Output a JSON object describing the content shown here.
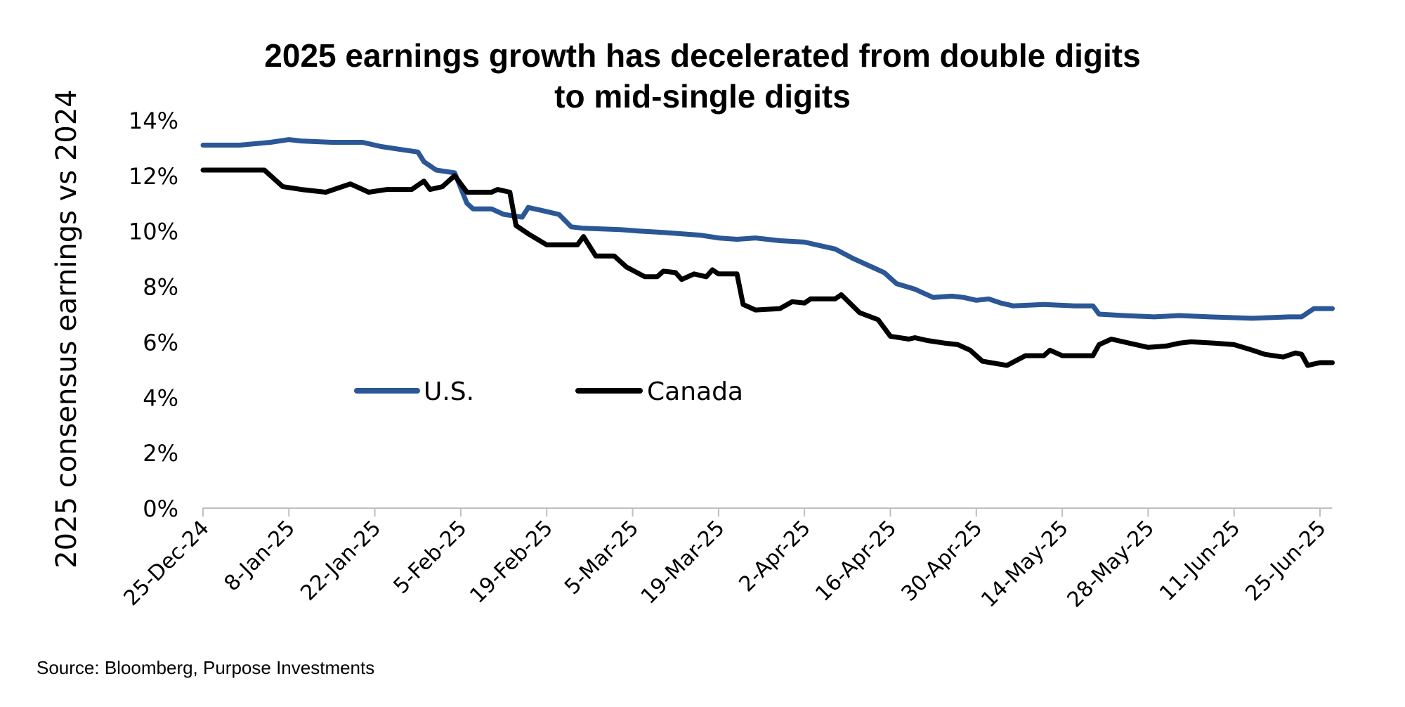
{
  "chart_data": {
    "type": "line",
    "title": [
      "2025 earnings growth has decelerated from double digits",
      "to mid-single digits"
    ],
    "ylabel": "2025 consensus earnings vs 2024",
    "xlabel": "",
    "ylim": [
      0,
      14
    ],
    "yticks": [
      0,
      2,
      4,
      6,
      8,
      10,
      12,
      14
    ],
    "ytick_labels": [
      "0%",
      "2%",
      "4%",
      "6%",
      "8%",
      "10%",
      "12%",
      "14%"
    ],
    "xlim": [
      "2024-12-25",
      "2025-06-27"
    ],
    "xticks": [
      "2024-12-25",
      "2025-01-08",
      "2025-01-22",
      "2025-02-05",
      "2025-02-19",
      "2025-03-05",
      "2025-03-19",
      "2025-04-02",
      "2025-04-16",
      "2025-04-30",
      "2025-05-14",
      "2025-05-28",
      "2025-06-11",
      "2025-06-25"
    ],
    "xtick_labels": [
      "25-Dec-24",
      "8-Jan-25",
      "22-Jan-25",
      "5-Feb-25",
      "19-Feb-25",
      "5-Mar-25",
      "19-Mar-25",
      "2-Apr-25",
      "16-Apr-25",
      "30-Apr-25",
      "14-May-25",
      "28-May-25",
      "11-Jun-25",
      "25-Jun-25"
    ],
    "grid": false,
    "legend_placement": "center-left",
    "series": [
      {
        "name": "U.S.",
        "color": "#2b5797",
        "points": [
          [
            "2024-12-25",
            13.1
          ],
          [
            "2024-12-31",
            13.1
          ],
          [
            "2025-01-05",
            13.2
          ],
          [
            "2025-01-08",
            13.3
          ],
          [
            "2025-01-10",
            13.25
          ],
          [
            "2025-01-15",
            13.2
          ],
          [
            "2025-01-20",
            13.2
          ],
          [
            "2025-01-23",
            13.05
          ],
          [
            "2025-01-26",
            12.95
          ],
          [
            "2025-01-29",
            12.85
          ],
          [
            "2025-01-30",
            12.5
          ],
          [
            "2025-02-01",
            12.2
          ],
          [
            "2025-02-04",
            12.1
          ],
          [
            "2025-02-06",
            11.0
          ],
          [
            "2025-02-07",
            10.8
          ],
          [
            "2025-02-10",
            10.8
          ],
          [
            "2025-02-12",
            10.6
          ],
          [
            "2025-02-15",
            10.5
          ],
          [
            "2025-02-16",
            10.85
          ],
          [
            "2025-02-18",
            10.75
          ],
          [
            "2025-02-21",
            10.6
          ],
          [
            "2025-02-23",
            10.15
          ],
          [
            "2025-02-25",
            10.1
          ],
          [
            "2025-03-03",
            10.05
          ],
          [
            "2025-03-06",
            10.0
          ],
          [
            "2025-03-10",
            9.95
          ],
          [
            "2025-03-16",
            9.85
          ],
          [
            "2025-03-19",
            9.75
          ],
          [
            "2025-03-22",
            9.7
          ],
          [
            "2025-03-25",
            9.75
          ],
          [
            "2025-03-29",
            9.65
          ],
          [
            "2025-04-02",
            9.6
          ],
          [
            "2025-04-05",
            9.45
          ],
          [
            "2025-04-07",
            9.35
          ],
          [
            "2025-04-10",
            9.0
          ],
          [
            "2025-04-13",
            8.7
          ],
          [
            "2025-04-15",
            8.5
          ],
          [
            "2025-04-17",
            8.1
          ],
          [
            "2025-04-20",
            7.9
          ],
          [
            "2025-04-21",
            7.8
          ],
          [
            "2025-04-23",
            7.6
          ],
          [
            "2025-04-26",
            7.65
          ],
          [
            "2025-04-28",
            7.6
          ],
          [
            "2025-04-30",
            7.5
          ],
          [
            "2025-05-02",
            7.55
          ],
          [
            "2025-05-04",
            7.4
          ],
          [
            "2025-05-06",
            7.3
          ],
          [
            "2025-05-11",
            7.35
          ],
          [
            "2025-05-16",
            7.3
          ],
          [
            "2025-05-19",
            7.3
          ],
          [
            "2025-05-20",
            7.0
          ],
          [
            "2025-05-24",
            6.95
          ],
          [
            "2025-05-29",
            6.9
          ],
          [
            "2025-06-02",
            6.95
          ],
          [
            "2025-06-07",
            6.9
          ],
          [
            "2025-06-14",
            6.85
          ],
          [
            "2025-06-20",
            6.9
          ],
          [
            "2025-06-22",
            6.9
          ],
          [
            "2025-06-24",
            7.2
          ],
          [
            "2025-06-27",
            7.2
          ]
        ]
      },
      {
        "name": "Canada",
        "color": "#000000",
        "points": [
          [
            "2024-12-25",
            12.2
          ],
          [
            "2025-01-04",
            12.2
          ],
          [
            "2025-01-05",
            12.0
          ],
          [
            "2025-01-07",
            11.6
          ],
          [
            "2025-01-10",
            11.5
          ],
          [
            "2025-01-14",
            11.4
          ],
          [
            "2025-01-18",
            11.7
          ],
          [
            "2025-01-21",
            11.4
          ],
          [
            "2025-01-24",
            11.5
          ],
          [
            "2025-01-28",
            11.5
          ],
          [
            "2025-01-30",
            11.8
          ],
          [
            "2025-01-31",
            11.5
          ],
          [
            "2025-02-02",
            11.6
          ],
          [
            "2025-02-04",
            12.0
          ],
          [
            "2025-02-06",
            11.4
          ],
          [
            "2025-02-10",
            11.4
          ],
          [
            "2025-02-11",
            11.5
          ],
          [
            "2025-02-13",
            11.4
          ],
          [
            "2025-02-14",
            10.2
          ],
          [
            "2025-02-16",
            9.9
          ],
          [
            "2025-02-19",
            9.5
          ],
          [
            "2025-02-21",
            9.5
          ],
          [
            "2025-02-24",
            9.5
          ],
          [
            "2025-02-25",
            9.8
          ],
          [
            "2025-02-27",
            9.1
          ],
          [
            "2025-03-02",
            9.1
          ],
          [
            "2025-03-04",
            8.7
          ],
          [
            "2025-03-07",
            8.35
          ],
          [
            "2025-03-09",
            8.35
          ],
          [
            "2025-03-10",
            8.55
          ],
          [
            "2025-03-12",
            8.5
          ],
          [
            "2025-03-13",
            8.25
          ],
          [
            "2025-03-15",
            8.45
          ],
          [
            "2025-03-17",
            8.35
          ],
          [
            "2025-03-18",
            8.6
          ],
          [
            "2025-03-19",
            8.45
          ],
          [
            "2025-03-22",
            8.45
          ],
          [
            "2025-03-23",
            7.35
          ],
          [
            "2025-03-25",
            7.15
          ],
          [
            "2025-03-29",
            7.2
          ],
          [
            "2025-03-31",
            7.45
          ],
          [
            "2025-04-02",
            7.4
          ],
          [
            "2025-04-03",
            7.55
          ],
          [
            "2025-04-05",
            7.55
          ],
          [
            "2025-04-07",
            7.55
          ],
          [
            "2025-04-08",
            7.7
          ],
          [
            "2025-04-11",
            7.05
          ],
          [
            "2025-04-14",
            6.8
          ],
          [
            "2025-04-16",
            6.2
          ],
          [
            "2025-04-19",
            6.1
          ],
          [
            "2025-04-20",
            6.15
          ],
          [
            "2025-04-22",
            6.05
          ],
          [
            "2025-04-25",
            5.95
          ],
          [
            "2025-04-27",
            5.9
          ],
          [
            "2025-04-29",
            5.7
          ],
          [
            "2025-05-01",
            5.3
          ],
          [
            "2025-05-05",
            5.15
          ],
          [
            "2025-05-08",
            5.5
          ],
          [
            "2025-05-11",
            5.5
          ],
          [
            "2025-05-12",
            5.7
          ],
          [
            "2025-05-14",
            5.5
          ],
          [
            "2025-05-19",
            5.5
          ],
          [
            "2025-05-20",
            5.9
          ],
          [
            "2025-05-22",
            6.1
          ],
          [
            "2025-05-25",
            5.95
          ],
          [
            "2025-05-28",
            5.8
          ],
          [
            "2025-05-31",
            5.85
          ],
          [
            "2025-06-02",
            5.95
          ],
          [
            "2025-06-04",
            6.0
          ],
          [
            "2025-06-08",
            5.95
          ],
          [
            "2025-06-11",
            5.9
          ],
          [
            "2025-06-14",
            5.7
          ],
          [
            "2025-06-16",
            5.55
          ],
          [
            "2025-06-19",
            5.45
          ],
          [
            "2025-06-21",
            5.6
          ],
          [
            "2025-06-22",
            5.55
          ],
          [
            "2025-06-23",
            5.15
          ],
          [
            "2025-06-25",
            5.25
          ],
          [
            "2025-06-27",
            5.25
          ]
        ]
      }
    ]
  },
  "source": "Source: Bloomberg, Purpose Investments"
}
